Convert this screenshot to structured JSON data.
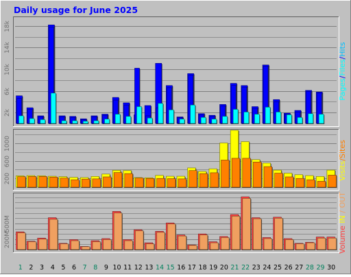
{
  "title": "Daily usage for June 2025",
  "colors": {
    "background": "#C0C0C0",
    "hits": "#00C0FF",
    "files": "#0000FF",
    "pages": "#00FFFF",
    "visits": "#FFFF00",
    "sites": "#FF8000",
    "kbin": "#FF4040",
    "kbout": "#F0A060",
    "weekend": "#00805C",
    "title": "#0000FF"
  },
  "legends": {
    "top": [
      "Pages",
      "/",
      "Files",
      "/",
      "Hits"
    ],
    "middle": [
      "Visits",
      "/",
      "Sites"
    ],
    "bottom": [
      "Volume",
      " ",
      "IN",
      " / ",
      "OUT"
    ]
  },
  "chart_data": [
    {
      "type": "bar",
      "name": "hits-files-pages",
      "categories": [
        "1",
        "2",
        "3",
        "4",
        "5",
        "6",
        "7",
        "8",
        "9",
        "10",
        "11",
        "12",
        "13",
        "14",
        "15",
        "16",
        "17",
        "18",
        "19",
        "20",
        "21",
        "22",
        "23",
        "24",
        "25",
        "26",
        "27",
        "28",
        "29",
        "30"
      ],
      "ylim": [
        0,
        19000
      ],
      "tick_labels": [
        "2k",
        "6k",
        "10k",
        "14k",
        "18k"
      ],
      "tick_values": [
        2000,
        6000,
        10000,
        14000,
        18000
      ],
      "series": [
        {
          "name": "Hits",
          "values": [
            5100,
            2900,
            1400,
            18200,
            1400,
            1300,
            850,
            1400,
            1700,
            4800,
            3800,
            1600,
            3300,
            11100,
            7000,
            1200,
            9200,
            1800,
            1500,
            3500,
            7400,
            7000,
            3100,
            10800,
            4400,
            1900,
            2400,
            6100,
            5800,
            0
          ]
        },
        {
          "name": "Files",
          "values": [
            4600,
            2600,
            1200,
            17800,
            1200,
            1100,
            700,
            1200,
            1500,
            4300,
            3400,
            10200,
            1400,
            2900,
            6600,
            1100,
            8900,
            1600,
            1300,
            3200,
            7000,
            6700,
            2800,
            10600,
            4000,
            1700,
            2100,
            5900,
            5600,
            0
          ]
        },
        {
          "name": "Pages",
          "values": [
            1400,
            900,
            700,
            5600,
            500,
            500,
            400,
            500,
            800,
            1700,
            1300,
            3100,
            1000,
            3700,
            2500,
            800,
            3400,
            1100,
            800,
            1300,
            2600,
            2100,
            1700,
            3000,
            2100,
            1600,
            1100,
            1800,
            1700,
            0
          ]
        }
      ]
    },
    {
      "type": "bar",
      "name": "visits-sites",
      "categories": [
        "1",
        "2",
        "3",
        "4",
        "5",
        "6",
        "7",
        "8",
        "9",
        "10",
        "11",
        "12",
        "13",
        "14",
        "15",
        "16",
        "17",
        "18",
        "19",
        "20",
        "21",
        "22",
        "23",
        "24",
        "25",
        "26",
        "27",
        "28",
        "29",
        "30"
      ],
      "ylim": [
        0,
        1300
      ],
      "tick_labels": [
        "200",
        "600",
        "1000"
      ],
      "tick_values": [
        200,
        600,
        1000
      ],
      "series": [
        {
          "name": "Visits",
          "values": [
            260,
            265,
            260,
            250,
            240,
            225,
            220,
            245,
            300,
            385,
            380,
            220,
            215,
            270,
            250,
            250,
            440,
            360,
            420,
            1010,
            1300,
            1040,
            630,
            550,
            390,
            320,
            285,
            265,
            245,
            390
          ]
        },
        {
          "name": "Sites",
          "values": [
            240,
            245,
            245,
            230,
            210,
            170,
            185,
            190,
            235,
            335,
            310,
            210,
            200,
            200,
            195,
            190,
            380,
            310,
            330,
            620,
            660,
            660,
            575,
            470,
            320,
            235,
            200,
            170,
            135,
            275
          ]
        }
      ]
    },
    {
      "type": "bar",
      "name": "volume",
      "categories": [
        "1",
        "2",
        "3",
        "4",
        "5",
        "6",
        "7",
        "8",
        "9",
        "10",
        "11",
        "12",
        "13",
        "14",
        "15",
        "16",
        "17",
        "18",
        "19",
        "20",
        "21",
        "22",
        "23",
        "24",
        "25",
        "26",
        "27",
        "28",
        "29",
        "30"
      ],
      "ylim": [
        0,
        1050
      ],
      "tick_labels": [
        "200M",
        "500M"
      ],
      "tick_values": [
        200,
        500
      ],
      "series": [
        {
          "name": "In",
          "values": [
            340,
            160,
            220,
            610,
            120,
            190,
            60,
            170,
            210,
            730,
            190,
            380,
            130,
            350,
            510,
            280,
            90,
            300,
            150,
            250,
            670,
            1010,
            610,
            230,
            620,
            210,
            120,
            140,
            240,
            240
          ]
        },
        {
          "name": "Out",
          "values": [
            320,
            150,
            200,
            580,
            110,
            170,
            55,
            150,
            190,
            700,
            170,
            360,
            110,
            330,
            490,
            260,
            80,
            280,
            130,
            230,
            640,
            980,
            590,
            210,
            600,
            190,
            110,
            130,
            220,
            220
          ]
        }
      ]
    }
  ]
}
